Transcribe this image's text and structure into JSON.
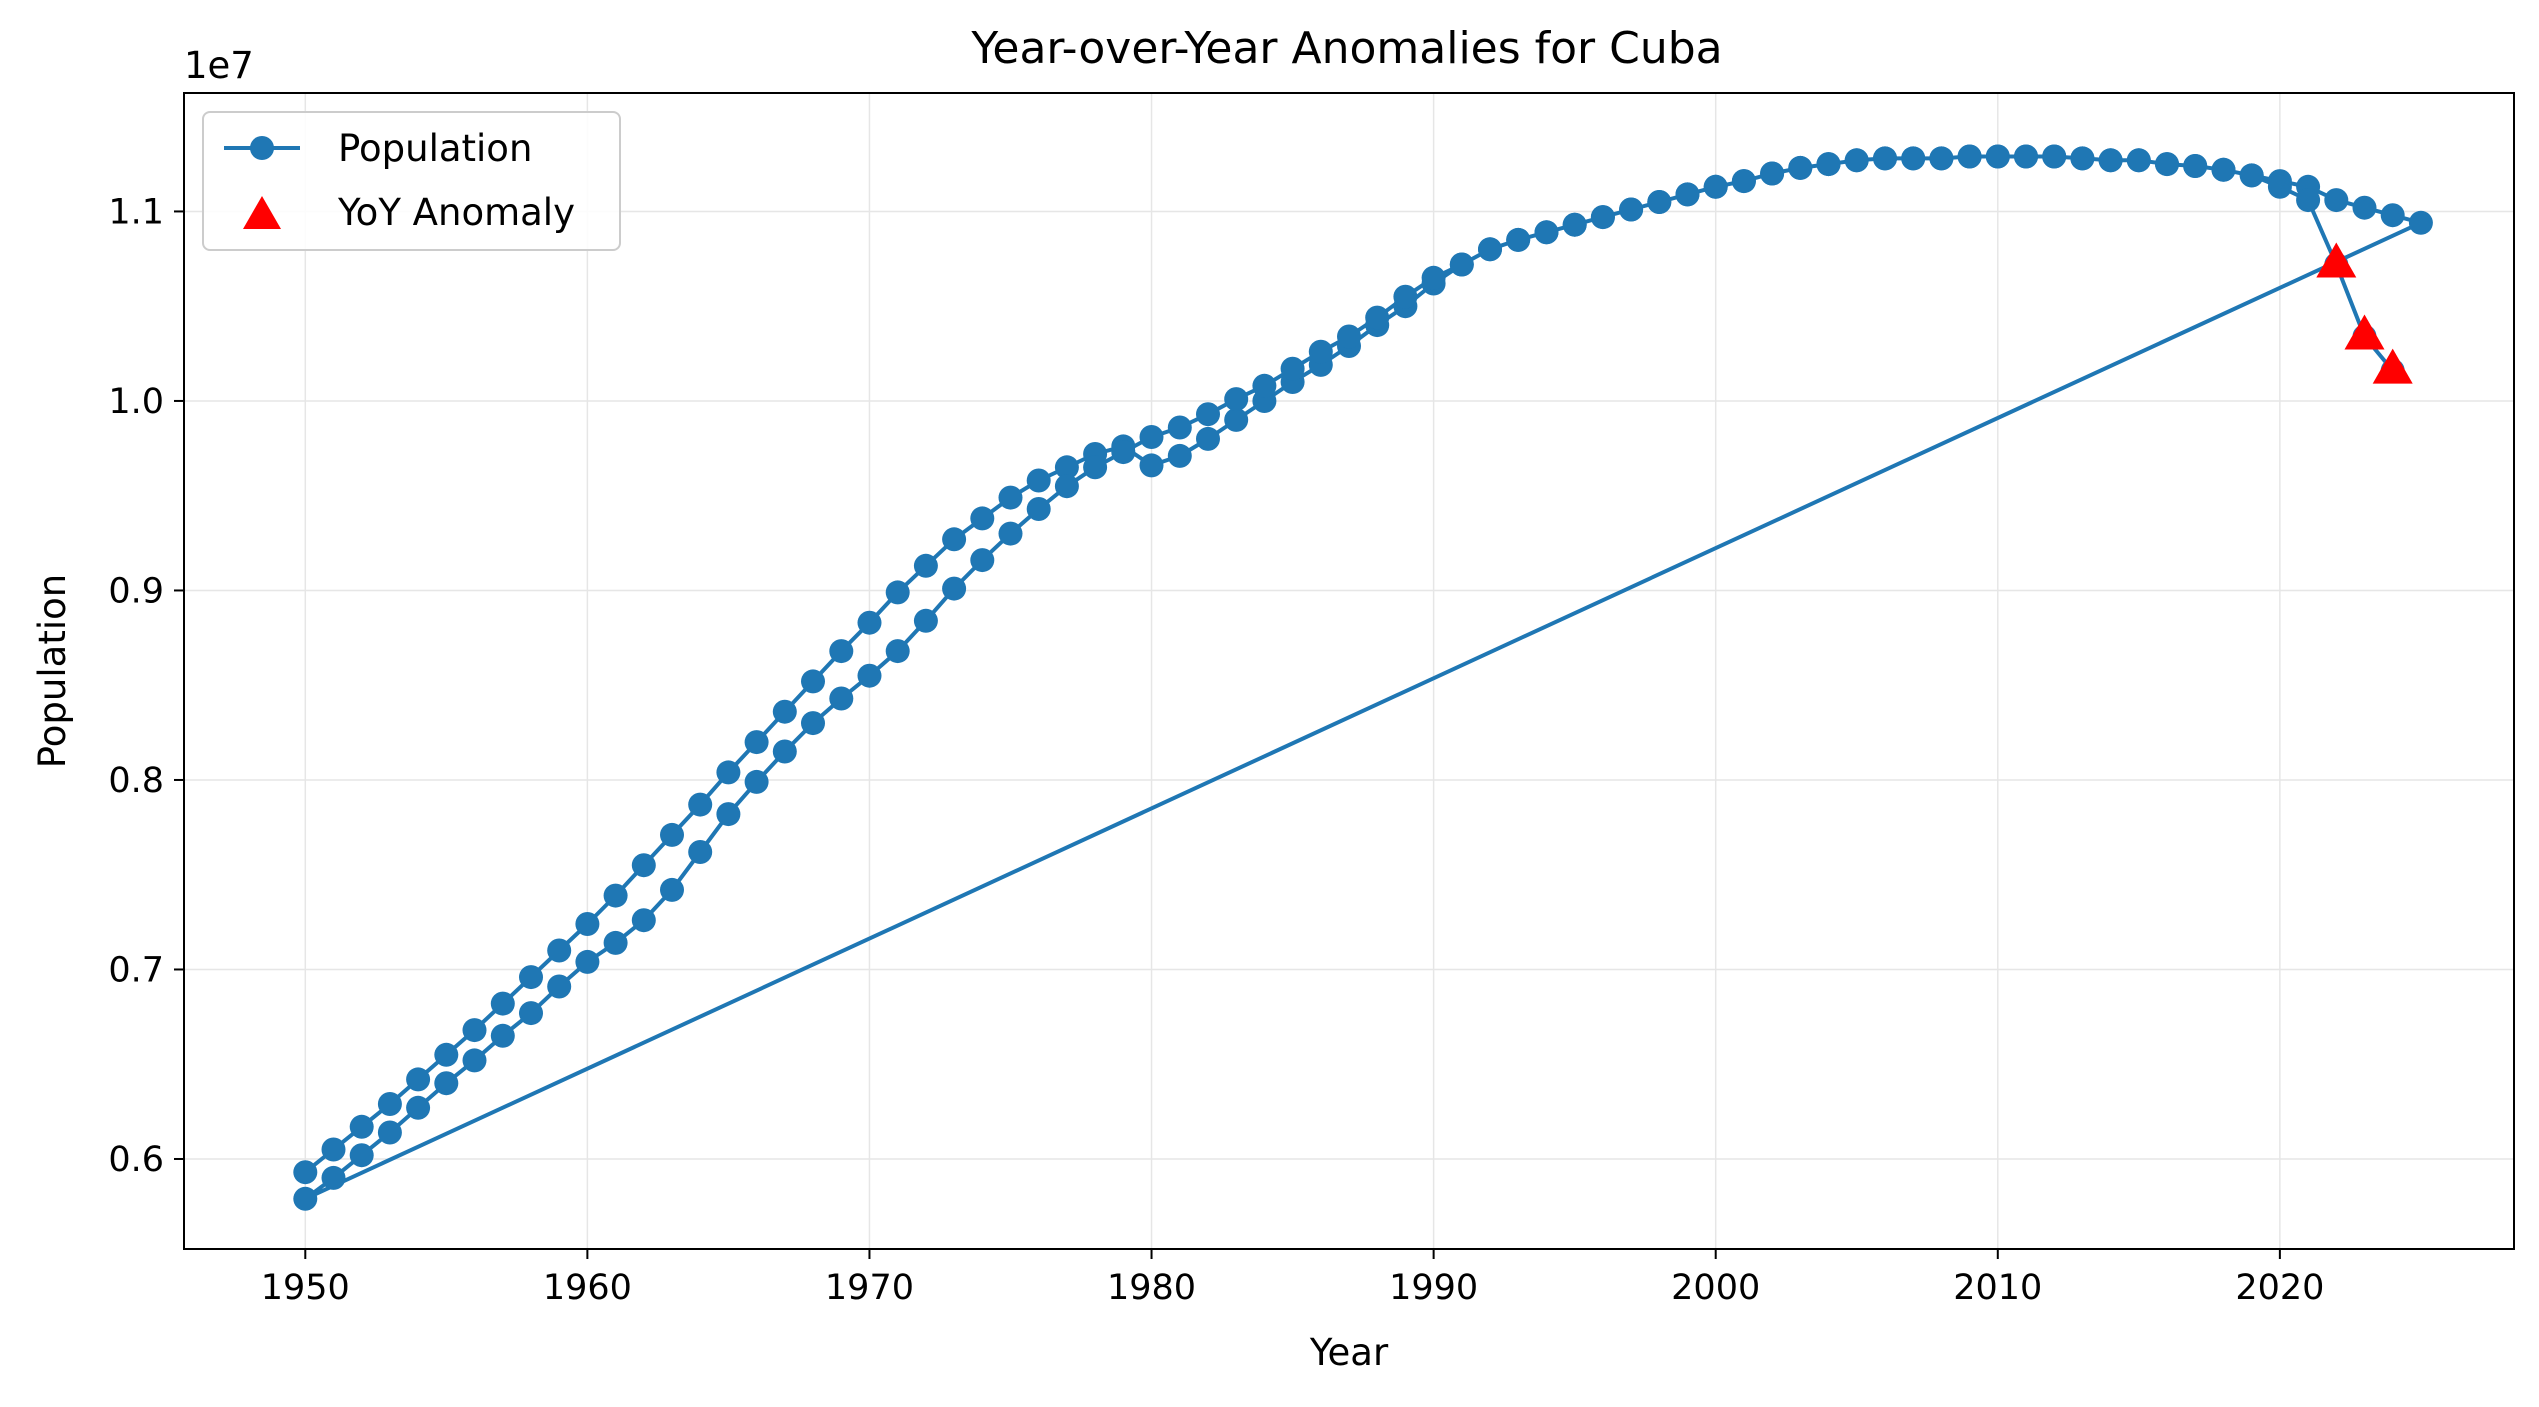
{
  "chart_data": {
    "type": "line",
    "title": "Year-over-Year Anomalies for Cuba",
    "xlabel": "Year",
    "ylabel": "Population",
    "y_offset_label": "1e7",
    "xlim": [
      1945.7,
      2028.3
    ],
    "ylim": [
      5525000,
      11625000
    ],
    "x_ticks": [
      1950,
      1960,
      1970,
      1980,
      1990,
      2000,
      2010,
      2020
    ],
    "x_tick_labels": [
      "1950",
      "1960",
      "1970",
      "1980",
      "1990",
      "2000",
      "2010",
      "2020"
    ],
    "y_ticks": [
      6000000,
      7000000,
      8000000,
      9000000,
      10000000,
      11000000
    ],
    "y_tick_labels": [
      "0.6",
      "0.7",
      "0.8",
      "0.9",
      "1.0",
      "1.1"
    ],
    "grid": true,
    "legend_position": "top-left",
    "colors": {
      "line": "#1f77b4",
      "anomaly": "#ff0000",
      "grid": "#e6e6e6"
    },
    "series": [
      {
        "name": "Population",
        "style": "line-with-circle-markers",
        "points": [
          [
            1950,
            5930000
          ],
          [
            1951,
            6050000
          ],
          [
            1952,
            6170000
          ],
          [
            1953,
            6290000
          ],
          [
            1954,
            6420000
          ],
          [
            1955,
            6550000
          ],
          [
            1956,
            6680000
          ],
          [
            1957,
            6820000
          ],
          [
            1958,
            6960000
          ],
          [
            1959,
            7100000
          ],
          [
            1960,
            7240000
          ],
          [
            1961,
            7390000
          ],
          [
            1962,
            7550000
          ],
          [
            1963,
            7710000
          ],
          [
            1964,
            7870000
          ],
          [
            1965,
            8040000
          ],
          [
            1966,
            8200000
          ],
          [
            1967,
            8360000
          ],
          [
            1968,
            8520000
          ],
          [
            1969,
            8680000
          ],
          [
            1970,
            8830000
          ],
          [
            1971,
            8990000
          ],
          [
            1972,
            9130000
          ],
          [
            1973,
            9270000
          ],
          [
            1974,
            9380000
          ],
          [
            1975,
            9490000
          ],
          [
            1976,
            9580000
          ],
          [
            1977,
            9650000
          ],
          [
            1978,
            9720000
          ],
          [
            1979,
            9760000
          ],
          [
            1980,
            9660000
          ],
          [
            1981,
            9710000
          ],
          [
            1982,
            9800000
          ],
          [
            1983,
            9900000
          ],
          [
            1984,
            10000000
          ],
          [
            1985,
            10100000
          ],
          [
            1986,
            10190000
          ],
          [
            1987,
            10290000
          ],
          [
            1988,
            10400000
          ],
          [
            1989,
            10500000
          ],
          [
            1990,
            10620000
          ],
          [
            1991,
            10720000
          ],
          [
            1992,
            10800000
          ],
          [
            1993,
            10850000
          ],
          [
            1994,
            10890000
          ],
          [
            1995,
            10930000
          ],
          [
            1996,
            10970000
          ],
          [
            1997,
            11010000
          ],
          [
            1998,
            11050000
          ],
          [
            1999,
            11090000
          ],
          [
            2000,
            11130000
          ],
          [
            2001,
            11160000
          ],
          [
            2002,
            11200000
          ],
          [
            2003,
            11230000
          ],
          [
            2004,
            11250000
          ],
          [
            2005,
            11270000
          ],
          [
            2006,
            11280000
          ],
          [
            2007,
            11280000
          ],
          [
            2008,
            11280000
          ],
          [
            2009,
            11290000
          ],
          [
            2010,
            11290000
          ],
          [
            2011,
            11290000
          ],
          [
            2012,
            11290000
          ],
          [
            2013,
            11280000
          ],
          [
            2014,
            11270000
          ],
          [
            2015,
            11270000
          ],
          [
            2016,
            11250000
          ],
          [
            2017,
            11240000
          ],
          [
            2018,
            11220000
          ],
          [
            2019,
            11190000
          ],
          [
            2020,
            11160000
          ],
          [
            2021,
            11130000
          ],
          [
            2022,
            11060000
          ],
          [
            2023,
            11020000
          ],
          [
            2024,
            10980000
          ],
          [
            2025,
            10940000
          ],
          [
            1950,
            5790000
          ],
          [
            1951,
            5900000
          ],
          [
            1952,
            6020000
          ],
          [
            1953,
            6140000
          ],
          [
            1954,
            6270000
          ],
          [
            1955,
            6400000
          ],
          [
            1956,
            6520000
          ],
          [
            1957,
            6650000
          ],
          [
            1958,
            6770000
          ],
          [
            1959,
            6910000
          ],
          [
            1960,
            7040000
          ],
          [
            1961,
            7140000
          ],
          [
            1962,
            7260000
          ],
          [
            1963,
            7420000
          ],
          [
            1964,
            7620000
          ],
          [
            1965,
            7820000
          ],
          [
            1966,
            7990000
          ],
          [
            1967,
            8150000
          ],
          [
            1968,
            8300000
          ],
          [
            1969,
            8430000
          ],
          [
            1970,
            8550000
          ],
          [
            1971,
            8680000
          ],
          [
            1972,
            8840000
          ],
          [
            1973,
            9010000
          ],
          [
            1974,
            9160000
          ],
          [
            1975,
            9300000
          ],
          [
            1976,
            9430000
          ],
          [
            1977,
            9550000
          ],
          [
            1978,
            9650000
          ],
          [
            1979,
            9730000
          ],
          [
            1980,
            9810000
          ],
          [
            1981,
            9860000
          ],
          [
            1982,
            9930000
          ],
          [
            1983,
            10010000
          ],
          [
            1984,
            10080000
          ],
          [
            1985,
            10170000
          ],
          [
            1986,
            10260000
          ],
          [
            1987,
            10340000
          ],
          [
            1988,
            10440000
          ],
          [
            1989,
            10550000
          ],
          [
            1990,
            10650000
          ],
          [
            1991,
            10720000
          ],
          [
            1992,
            10800000
          ],
          [
            1993,
            10850000
          ],
          [
            1994,
            10890000
          ],
          [
            1995,
            10930000
          ],
          [
            1996,
            10970000
          ],
          [
            1997,
            11010000
          ],
          [
            1998,
            11050000
          ],
          [
            1999,
            11090000
          ],
          [
            2000,
            11130000
          ],
          [
            2001,
            11160000
          ],
          [
            2002,
            11200000
          ],
          [
            2003,
            11230000
          ],
          [
            2004,
            11250000
          ],
          [
            2005,
            11270000
          ],
          [
            2006,
            11280000
          ],
          [
            2007,
            11280000
          ],
          [
            2008,
            11280000
          ],
          [
            2009,
            11290000
          ],
          [
            2010,
            11290000
          ],
          [
            2011,
            11290000
          ],
          [
            2012,
            11290000
          ],
          [
            2013,
            11280000
          ],
          [
            2014,
            11270000
          ],
          [
            2015,
            11270000
          ],
          [
            2016,
            11250000
          ],
          [
            2017,
            11240000
          ],
          [
            2018,
            11220000
          ],
          [
            2019,
            11190000
          ],
          [
            2020,
            11130000
          ],
          [
            2021,
            11060000
          ],
          [
            2022,
            10720000
          ],
          [
            2023,
            10340000
          ],
          [
            2024,
            10160000
          ]
        ]
      },
      {
        "name": "YoY Anomaly",
        "style": "red-triangle-markers",
        "points": [
          [
            2022,
            10720000
          ],
          [
            2023,
            10340000
          ],
          [
            2024,
            10160000
          ]
        ]
      }
    ]
  }
}
